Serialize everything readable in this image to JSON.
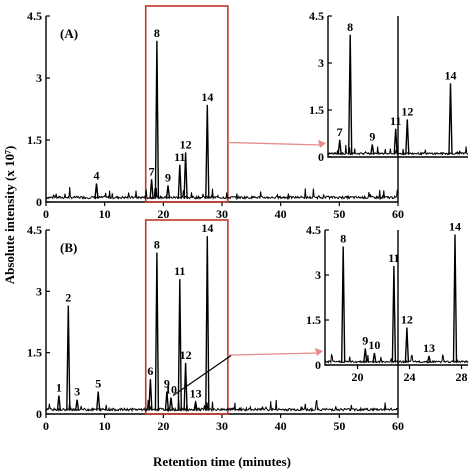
{
  "figure": {
    "xlabel": "Retention time (minutes)",
    "ylabel": "Absolute intensity (x 10⁷)"
  },
  "chart_data": [
    {
      "type": "line",
      "panel": "(A)",
      "xlim": [
        0,
        60
      ],
      "ylim": [
        0,
        4.5
      ],
      "xticks": [
        "0",
        "10",
        "20",
        "30",
        "40",
        "50",
        "60"
      ],
      "yticks": [
        "0",
        "1.5",
        "3",
        "4.5"
      ],
      "peaks": [
        {
          "label": "4",
          "x": 8.6,
          "y": 0.45
        },
        {
          "label": "7",
          "x": 18.0,
          "y": 0.55
        },
        {
          "label": "8",
          "x": 18.9,
          "y": 3.9
        },
        {
          "label": "9",
          "x": 20.8,
          "y": 0.4
        },
        {
          "label": "11",
          "x": 22.8,
          "y": 0.9
        },
        {
          "label": "12",
          "x": 23.8,
          "y": 1.2
        },
        {
          "label": "14",
          "x": 27.5,
          "y": 2.35
        }
      ],
      "highlight_range": [
        17,
        31
      ]
    },
    {
      "type": "line",
      "panel": "inset-A",
      "xlim": [
        17,
        29
      ],
      "ylim": [
        0,
        4.5
      ],
      "yticks": [
        "0",
        "1.5",
        "3",
        "4.5"
      ],
      "peaks": [
        {
          "label": "7",
          "x": 18.0,
          "y": 0.55
        },
        {
          "label": "8",
          "x": 18.9,
          "y": 3.9
        },
        {
          "label": "9",
          "x": 20.8,
          "y": 0.4
        },
        {
          "label": "11",
          "x": 22.8,
          "y": 0.9
        },
        {
          "label": "12",
          "x": 23.8,
          "y": 1.2
        },
        {
          "label": "14",
          "x": 27.5,
          "y": 2.35
        }
      ]
    },
    {
      "type": "line",
      "panel": "(B)",
      "xlim": [
        0,
        60
      ],
      "ylim": [
        0,
        4.5
      ],
      "xticks": [
        "0",
        "10",
        "20",
        "30",
        "40",
        "50",
        "60"
      ],
      "yticks": [
        "0",
        "1.5",
        "3",
        "4.5"
      ],
      "peaks": [
        {
          "label": "1",
          "x": 2.2,
          "y": 0.45
        },
        {
          "label": "2",
          "x": 3.8,
          "y": 2.65
        },
        {
          "label": "3",
          "x": 5.3,
          "y": 0.35
        },
        {
          "label": "5",
          "x": 8.9,
          "y": 0.55
        },
        {
          "label": "6",
          "x": 17.8,
          "y": 0.85
        },
        {
          "label": "8",
          "x": 18.9,
          "y": 3.95
        },
        {
          "label": "9",
          "x": 20.6,
          "y": 0.55
        },
        {
          "label": "10",
          "x": 21.3,
          "y": 0.4
        },
        {
          "label": "11",
          "x": 22.8,
          "y": 3.3
        },
        {
          "label": "12",
          "x": 23.8,
          "y": 1.25
        },
        {
          "label": "13",
          "x": 25.5,
          "y": 0.3
        },
        {
          "label": "14",
          "x": 27.5,
          "y": 4.35
        }
      ],
      "highlight_range": [
        17,
        31
      ]
    },
    {
      "type": "line",
      "panel": "inset-B",
      "xlim": [
        17.5,
        28.5
      ],
      "ylim": [
        0,
        4.5
      ],
      "xticks": [
        "20",
        "24",
        "28"
      ],
      "yticks": [
        "0",
        "1.5",
        "3",
        "4.5"
      ],
      "peaks": [
        {
          "label": "8",
          "x": 18.9,
          "y": 3.95
        },
        {
          "label": "9",
          "x": 20.6,
          "y": 0.55
        },
        {
          "label": "10",
          "x": 21.3,
          "y": 0.4
        },
        {
          "label": "11",
          "x": 22.8,
          "y": 3.3
        },
        {
          "label": "12",
          "x": 23.8,
          "y": 1.25
        },
        {
          "label": "13",
          "x": 25.5,
          "y": 0.3
        },
        {
          "label": "14",
          "x": 27.5,
          "y": 4.35
        }
      ]
    }
  ],
  "colors": {
    "trace": "#000000",
    "highlight": "#c0392b",
    "arrow": "#e88b8b"
  }
}
